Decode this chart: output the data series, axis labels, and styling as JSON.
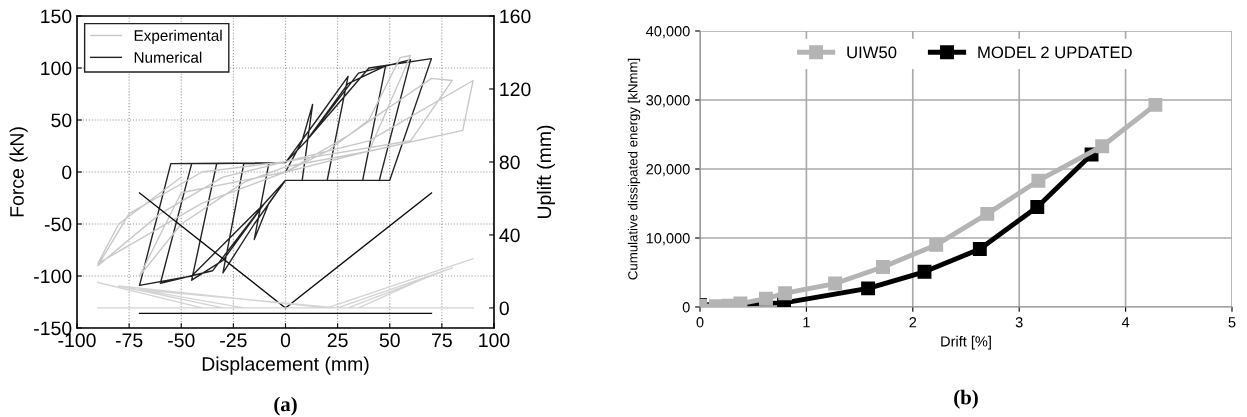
{
  "chart_data": [
    {
      "type": "line",
      "xlabel": "Displacement (mm)",
      "ylabel": "Force (kN)",
      "y2label": "Uplift (mm)",
      "xlim": [
        -100,
        100
      ],
      "xticks": [
        -100,
        -75,
        -50,
        -25,
        0,
        25,
        50,
        75,
        100
      ],
      "ylim": [
        -150,
        150
      ],
      "yticks": [
        -150,
        -100,
        -50,
        0,
        50,
        100,
        150
      ],
      "y2lim": [
        -11,
        160
      ],
      "y2ticks": [
        0,
        40,
        80,
        120,
        160
      ],
      "grid": true,
      "legend": "top left",
      "annotations": [
        "(a)"
      ],
      "series": [
        {
          "name": "Experimental",
          "color": "#c8c8c8",
          "x": [
            0,
            20,
            40,
            55,
            60,
            40,
            0,
            -20,
            -50,
            -70,
            -50,
            0,
            30,
            70,
            80,
            60,
            0,
            -30,
            -60,
            -90,
            -75,
            -40,
            0,
            40,
            90,
            85,
            40,
            0,
            -40,
            -90,
            -80,
            -50
          ],
          "values": [
            0,
            20,
            50,
            110,
            112,
            20,
            5,
            -10,
            -50,
            -100,
            -20,
            0,
            35,
            90,
            88,
            30,
            10,
            -5,
            -40,
            -90,
            -40,
            0,
            10,
            30,
            88,
            40,
            20,
            0,
            -30,
            -88,
            -50,
            -5
          ]
        },
        {
          "name": "Numerical",
          "color": "#222222",
          "x": [
            0,
            8,
            13,
            8,
            0,
            -8,
            -15,
            -8,
            0,
            15,
            30,
            20,
            0,
            -15,
            -30,
            -20,
            0,
            10,
            30,
            48,
            37,
            0,
            -10,
            -30,
            -45,
            -33,
            0,
            10,
            35,
            60,
            45,
            0,
            -10,
            -35,
            -60,
            -45,
            0,
            10,
            40,
            70,
            50,
            0,
            -10,
            -45,
            -70,
            -55,
            0
          ],
          "values": [
            0,
            30,
            65,
            -8,
            -8,
            -30,
            -65,
            8,
            9,
            50,
            92,
            -8,
            -8,
            -50,
            -97,
            8,
            9,
            30,
            85,
            102,
            -8,
            -8,
            -30,
            -85,
            -104,
            8,
            9,
            30,
            95,
            108,
            -8,
            -8,
            -30,
            -95,
            -107,
            8,
            9,
            30,
            100,
            109,
            -8,
            -8,
            -30,
            -100,
            -109,
            8,
            9
          ]
        },
        {
          "axis": "y2",
          "color": "#d4d4d4",
          "x": [
            -90,
            90,
            null,
            -90,
            -40,
            20,
            90,
            20,
            -80,
            -30,
            30,
            80,
            25,
            -70,
            -20,
            35,
            70
          ],
          "values": [
            0,
            0,
            null,
            14,
            0,
            0,
            27,
            0,
            12,
            0,
            0,
            22,
            0,
            10,
            0,
            0,
            18
          ]
        },
        {
          "axis": "y2",
          "color": "#0a0a0a",
          "x": [
            -70,
            0,
            70,
            null,
            -70,
            70
          ],
          "values": [
            63,
            0,
            63,
            null,
            -3,
            -3
          ]
        }
      ]
    },
    {
      "type": "line",
      "xlabel": "Drift [%]",
      "ylabel": "Cumulative dissipated energy [kNmm]",
      "xlim": [
        0,
        5
      ],
      "xticks": [
        0,
        1,
        2,
        3,
        4,
        5
      ],
      "ylim": [
        0,
        40000
      ],
      "yticks": [
        0,
        {
          "value": 10000,
          "label": "10,000"
        },
        {
          "value": 20000,
          "label": "20,000"
        },
        {
          "value": 30000,
          "label": "30,000"
        },
        {
          "value": 40000,
          "label": "40,000"
        }
      ],
      "grid": true,
      "legend": "top",
      "marker": "square",
      "annotations": [
        "(b)"
      ],
      "series": [
        {
          "name": "UIW50",
          "color": "#b4b4b4",
          "x": [
            0,
            0.15,
            0.27,
            0.38,
            0.62,
            0.8,
            1.27,
            1.72,
            2.22,
            2.7,
            3.18,
            3.78,
            4.28
          ],
          "values": [
            200,
            100,
            200,
            500,
            1200,
            2000,
            3400,
            5800,
            9000,
            13500,
            18300,
            23300,
            29300
          ]
        },
        {
          "name": "MODEL 2 UPDATED",
          "color": "#000000",
          "x": [
            0,
            0.79,
            1.58,
            2.11,
            2.63,
            3.17,
            3.68
          ],
          "values": [
            300,
            600,
            2700,
            5100,
            8400,
            14500,
            22100
          ]
        }
      ]
    }
  ]
}
